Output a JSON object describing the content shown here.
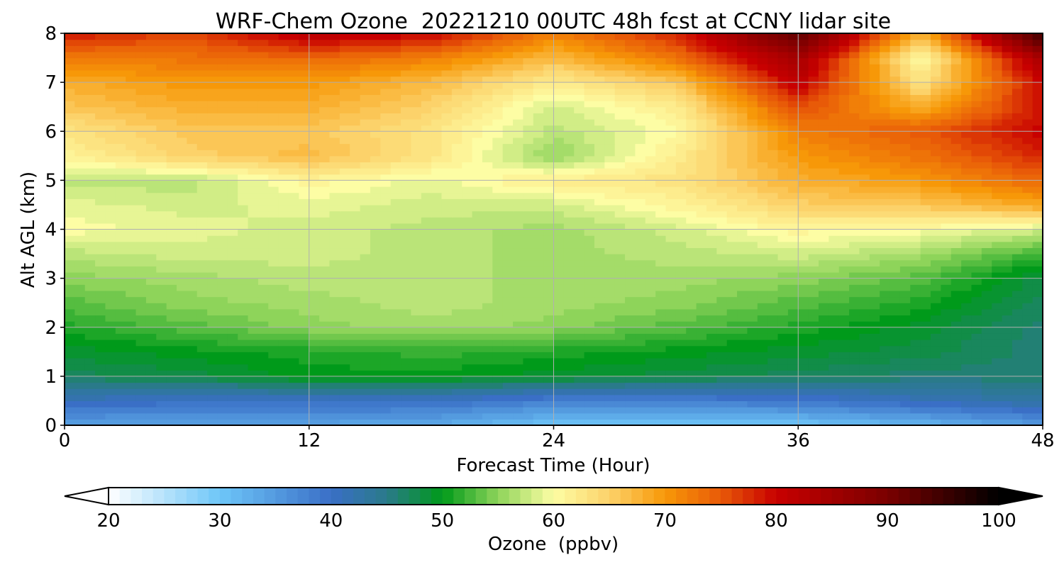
{
  "chart_data": {
    "type": "heatmap",
    "title": "WRF-Chem Ozone  20221210 00UTC 48h fcst at CCNY lidar site",
    "xlabel": "Forecast Time (Hour)",
    "ylabel": "Alt AGL (km)",
    "xlim": [
      0,
      48
    ],
    "ylim": [
      0,
      8
    ],
    "x_ticks": [
      "0",
      "12",
      "24",
      "36",
      "48"
    ],
    "y_ticks": [
      "0",
      "1",
      "2",
      "3",
      "4",
      "5",
      "6",
      "7",
      "8"
    ],
    "grid": true,
    "x": [
      0,
      6,
      12,
      18,
      24,
      30,
      36,
      42,
      48
    ],
    "y": [
      0,
      0.5,
      1,
      1.5,
      2,
      2.5,
      3,
      3.5,
      4,
      4.5,
      5,
      5.5,
      6,
      6.5,
      7,
      7.5,
      8
    ],
    "values": [
      [
        34,
        34,
        34,
        33,
        30,
        30,
        30,
        32,
        35
      ],
      [
        41,
        40,
        40,
        40,
        38,
        38,
        39,
        41,
        43
      ],
      [
        47,
        48,
        50,
        50,
        49,
        48,
        47,
        46,
        46
      ],
      [
        49,
        50,
        51,
        52,
        51,
        50,
        49,
        48,
        46
      ],
      [
        51,
        53,
        55,
        56,
        55,
        53,
        51,
        49,
        46
      ],
      [
        53,
        55,
        56,
        57,
        56,
        55,
        53,
        51,
        47
      ],
      [
        55,
        56,
        57,
        57,
        56,
        56,
        55,
        53,
        48
      ],
      [
        57,
        58,
        58,
        57,
        56,
        57,
        58,
        56,
        52
      ],
      [
        60,
        59,
        58,
        57,
        56,
        58,
        61,
        60,
        58
      ],
      [
        59,
        58,
        59,
        58,
        58,
        61,
        65,
        66,
        69
      ],
      [
        57,
        57,
        61,
        59,
        62,
        63,
        68,
        70,
        74
      ],
      [
        61,
        65,
        67,
        63,
        55,
        62,
        70,
        73,
        78
      ],
      [
        63,
        66,
        66,
        63,
        57,
        60,
        72,
        75,
        80
      ],
      [
        66,
        68,
        68,
        65,
        58,
        62,
        76,
        68,
        79
      ],
      [
        68,
        70,
        70,
        67,
        62,
        66,
        81,
        63,
        80
      ],
      [
        72,
        73,
        74,
        72,
        67,
        73,
        85,
        60,
        85
      ],
      [
        79,
        76,
        82,
        80,
        72,
        78,
        93,
        68,
        96
      ]
    ],
    "colorbar": {
      "label": "Ozone  (ppbv)",
      "min": 20,
      "max": 100,
      "ticks": [
        "20",
        "30",
        "40",
        "50",
        "60",
        "70",
        "80",
        "90",
        "100"
      ],
      "extend": "both",
      "colors": [
        {
          "value": 20,
          "color": "#ffffff"
        },
        {
          "value": 30,
          "color": "#6ec6f8"
        },
        {
          "value": 40,
          "color": "#3a6fc6"
        },
        {
          "value": 45,
          "color": "#2a7a8a"
        },
        {
          "value": 50,
          "color": "#009a1a"
        },
        {
          "value": 55,
          "color": "#8ed45a"
        },
        {
          "value": 60,
          "color": "#fdfda4"
        },
        {
          "value": 65,
          "color": "#fcd26a"
        },
        {
          "value": 70,
          "color": "#f79808"
        },
        {
          "value": 75,
          "color": "#e85a08"
        },
        {
          "value": 80,
          "color": "#c80000"
        },
        {
          "value": 90,
          "color": "#7a0000"
        },
        {
          "value": 100,
          "color": "#000000"
        }
      ]
    }
  }
}
